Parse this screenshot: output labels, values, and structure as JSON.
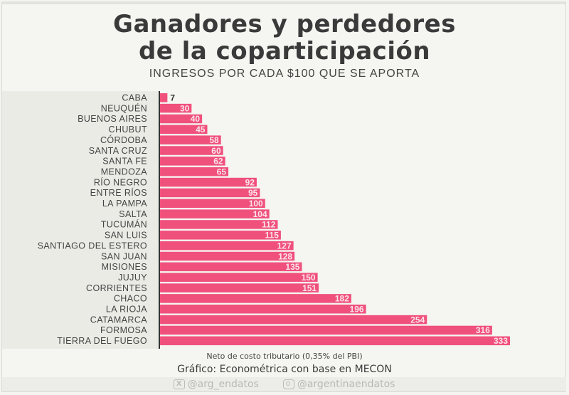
{
  "chart_data": {
    "type": "bar",
    "orientation": "horizontal",
    "title": "Ganadores y perdedores de la coparticipación",
    "title_lines": [
      "Ganadores y perdedores",
      "de la coparticipación"
    ],
    "subtitle": "INGRESOS POR CADA $100 QUE SE APORTA",
    "xlabel": "",
    "ylabel": "",
    "xlim": [
      0,
      333
    ],
    "grid": false,
    "bar_color": "#f0507c",
    "categories": [
      "CABA",
      "NEUQUÉN",
      "BUENOS AIRES",
      "CHUBUT",
      "CÓRDOBA",
      "SANTA CRUZ",
      "SANTA FE",
      "MENDOZA",
      "RÍO NEGRO",
      "ENTRE RÍOS",
      "LA PAMPA",
      "SALTA",
      "TUCUMÁN",
      "SAN LUIS",
      "SANTIAGO DEL ESTERO",
      "SAN JUAN",
      "MISIONES",
      "JUJUY",
      "CORRIENTES",
      "CHACO",
      "LA RIOJA",
      "CATAMARCA",
      "FORMOSA",
      "TIERRA DEL FUEGO"
    ],
    "values": [
      7,
      30,
      40,
      45,
      58,
      60,
      62,
      65,
      92,
      95,
      100,
      104,
      112,
      115,
      127,
      128,
      135,
      150,
      151,
      182,
      196,
      254,
      316,
      333
    ],
    "note": "Neto de costo tributario (0,35% del PBI)",
    "source": "Gráfico: Econométrica con base en MECON"
  },
  "footer": {
    "x_handle": "@arg_endatos",
    "instagram_handle": "@argentinaendatos",
    "x_icon": "x-logo-icon",
    "instagram_icon": "instagram-icon"
  }
}
